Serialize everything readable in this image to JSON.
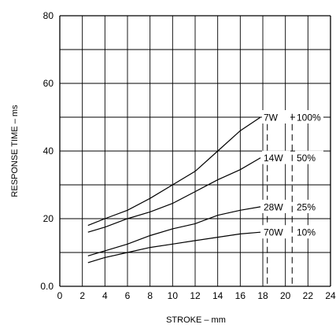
{
  "chart_data": {
    "type": "line",
    "xlabel": "STROKE – mm",
    "ylabel": "RESPONSE TIME – ms",
    "xlim": [
      0,
      24
    ],
    "ylim": [
      0,
      80
    ],
    "x_ticks": [
      "0",
      "2",
      "4",
      "6",
      "8",
      "10",
      "12",
      "14",
      "16",
      "18",
      "20",
      "22",
      "24"
    ],
    "y_ticks": [
      {
        "value": 0,
        "label": "0.0"
      },
      {
        "value": 20,
        "label": "20"
      },
      {
        "value": 40,
        "label": "40"
      },
      {
        "value": 60,
        "label": "60"
      },
      {
        "value": 80,
        "label": "80"
      }
    ],
    "grid": true,
    "series": [
      {
        "name": "7W",
        "label_power": "7W",
        "label_duty": "100%",
        "points": [
          [
            2.5,
            18.0
          ],
          [
            4,
            20.0
          ],
          [
            6,
            22.5
          ],
          [
            8,
            26.0
          ],
          [
            10,
            30.0
          ],
          [
            12,
            34.0
          ],
          [
            14,
            40.0
          ],
          [
            16,
            46.0
          ],
          [
            17.8,
            50.0
          ]
        ]
      },
      {
        "name": "14W",
        "label_power": "14W",
        "label_duty": "50%",
        "points": [
          [
            2.5,
            16.0
          ],
          [
            4,
            17.5
          ],
          [
            6,
            20.0
          ],
          [
            8,
            22.0
          ],
          [
            10,
            24.5
          ],
          [
            12,
            28.0
          ],
          [
            14,
            31.5
          ],
          [
            16,
            34.5
          ],
          [
            17.8,
            38.0
          ]
        ]
      },
      {
        "name": "28W",
        "label_power": "28W",
        "label_duty": "25%",
        "points": [
          [
            2.5,
            9.0
          ],
          [
            4,
            10.5
          ],
          [
            6,
            12.5
          ],
          [
            8,
            15.0
          ],
          [
            10,
            17.0
          ],
          [
            12,
            18.5
          ],
          [
            14,
            21.0
          ],
          [
            16,
            22.5
          ],
          [
            17.8,
            23.5
          ]
        ]
      },
      {
        "name": "70W",
        "label_power": "70W",
        "label_duty": "10%",
        "points": [
          [
            2.5,
            7.0
          ],
          [
            4,
            8.5
          ],
          [
            6,
            10.0
          ],
          [
            8,
            11.5
          ],
          [
            10,
            12.5
          ],
          [
            12,
            13.5
          ],
          [
            14,
            14.5
          ],
          [
            16,
            15.5
          ],
          [
            17.8,
            16.0
          ]
        ]
      }
    ]
  }
}
